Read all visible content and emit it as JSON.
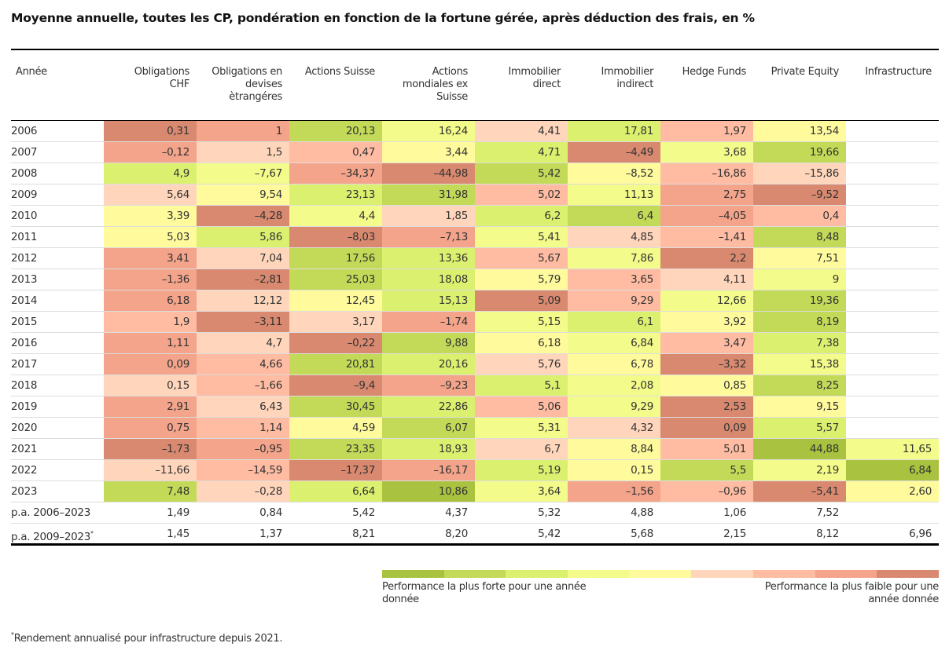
{
  "title": "Moyenne annuelle, toutes les CP, pondération en fonction de la fortune gérée, après déduction des frais, en %",
  "chart_data": {
    "type": "heatmap",
    "title": "Moyenne annuelle, toutes les CP, pondération en fonction de la fortune gérée, après déduction des frais, en %",
    "row_header": "Année",
    "columns": [
      "Obligations CHF",
      "Obligations en devises ètrangéres",
      "Actions Suisse",
      "Actions mondiales ex Suisse",
      "Immobilier direct",
      "Immobilier indirect",
      "Hedge Funds",
      "Private Equity",
      "Infrastructure"
    ],
    "columns_display": [
      [
        "Obligations",
        "CHF"
      ],
      [
        "Obligations en",
        "devises",
        "ètrangéres"
      ],
      [
        "Actions Suisse"
      ],
      [
        "Actions",
        "mondiales ex",
        "Suisse"
      ],
      [
        "Immobilier",
        "direct"
      ],
      [
        "Immobilier",
        "indirect"
      ],
      [
        "Hedge Funds"
      ],
      [
        "Private Equity"
      ],
      [
        "Infrastructure"
      ]
    ],
    "rows": [
      {
        "label": "2006",
        "values": [
          "0,31",
          "1",
          "20,13",
          "16,24",
          "4,41",
          "17,81",
          "1,97",
          "13,54",
          null
        ]
      },
      {
        "label": "2007",
        "values": [
          "–0,12",
          "1,5",
          "0,47",
          "3,44",
          "4,71",
          "–4,49",
          "3,68",
          "19,66",
          null
        ]
      },
      {
        "label": "2008",
        "values": [
          "4,9",
          "–7,67",
          "–34,37",
          "–44,98",
          "5,42",
          "–8,52",
          "–16,86",
          "–15,86",
          null
        ]
      },
      {
        "label": "2009",
        "values": [
          "5,64",
          "9,54",
          "23,13",
          "31,98",
          "5,02",
          "11,13",
          "2,75",
          "–9,52",
          null
        ]
      },
      {
        "label": "2010",
        "values": [
          "3,39",
          "–4,28",
          "4,4",
          "1,85",
          "6,2",
          "6,4",
          "–4,05",
          "0,4",
          null
        ]
      },
      {
        "label": "2011",
        "values": [
          "5,03",
          "5,86",
          "–8,03",
          "–7,13",
          "5,41",
          "4,85",
          "–1,41",
          "8,48",
          null
        ]
      },
      {
        "label": "2012",
        "values": [
          "3,41",
          "7,04",
          "17,56",
          "13,36",
          "5,67",
          "7,86",
          "2,2",
          "7,51",
          null
        ]
      },
      {
        "label": "2013",
        "values": [
          "–1,36",
          "–2,81",
          "25,03",
          "18,08",
          "5,79",
          "3,65",
          "4,11",
          "9",
          null
        ]
      },
      {
        "label": "2014",
        "values": [
          "6,18",
          "12,12",
          "12,45",
          "15,13",
          "5,09",
          "9,29",
          "12,66",
          "19,36",
          null
        ]
      },
      {
        "label": "2015",
        "values": [
          "1,9",
          "–3,11",
          "3,17",
          "–1,74",
          "5,15",
          "6,1",
          "3,92",
          "8,19",
          null
        ]
      },
      {
        "label": "2016",
        "values": [
          "1,11",
          "4,7",
          "–0,22",
          "9,88",
          "6,18",
          "6,84",
          "3,47",
          "7,38",
          null
        ]
      },
      {
        "label": "2017",
        "values": [
          "0,09",
          "4,66",
          "20,81",
          "20,16",
          "5,76",
          "6,78",
          "–3,32",
          "15,38",
          null
        ]
      },
      {
        "label": "2018",
        "values": [
          "0,15",
          "–1,66",
          "–9,4",
          "–9,23",
          "5,1",
          "2,08",
          "0,85",
          "8,25",
          null
        ]
      },
      {
        "label": "2019",
        "values": [
          "2,91",
          "6,43",
          "30,45",
          "22,86",
          "5,06",
          "9,29",
          "2,53",
          "9,15",
          null
        ]
      },
      {
        "label": "2020",
        "values": [
          "0,75",
          "1,14",
          "4,59",
          "6,07",
          "5,31",
          "4,32",
          "0,09",
          "5,57",
          null
        ]
      },
      {
        "label": "2021",
        "values": [
          "–1,73",
          "–0,95",
          "23,35",
          "18,93",
          "6,7",
          "8,84",
          "5,01",
          "44,88",
          "11,65"
        ]
      },
      {
        "label": "2022",
        "values": [
          "–11,66",
          "–14,59",
          "–17,37",
          "–16,17",
          "5,19",
          "0,15",
          "5,5",
          "2,19",
          "6,84"
        ]
      },
      {
        "label": "2023",
        "values": [
          "7,48",
          "–0,28",
          "6,64",
          "10,86",
          "3,64",
          "–1,56",
          "–0,96",
          "–5,41",
          "2,60"
        ]
      }
    ],
    "summary_rows": [
      {
        "label": "p.a. 2006–2023",
        "footnote_mark": "",
        "values": [
          "1,49",
          "0,84",
          "5,42",
          "4,37",
          "5,32",
          "4,88",
          "1,06",
          "7,52",
          null
        ]
      },
      {
        "label": "p.a. 2009–2023",
        "footnote_mark": "*",
        "values": [
          "1,45",
          "1,37",
          "8,21",
          "8,20",
          "5,42",
          "5,68",
          "2,15",
          "8,12",
          "6,96"
        ]
      }
    ],
    "color_scale": {
      "description": "Per-year ranking across asset classes, strongest to weakest",
      "colors": [
        "#a9c23f",
        "#c2da58",
        "#dcf070",
        "#f3fb8a",
        "#fffb9d",
        "#ffd6bb",
        "#ffbca2",
        "#f3a48a",
        "#d9896f"
      ],
      "label_strong": "Performance la plus forte pour une année donnée",
      "label_weak": "Performance la plus faible pour une année donnée"
    }
  },
  "footnote": {
    "mark": "*",
    "text": "Rendement annualisé pour infrastructure depuis 2021."
  }
}
